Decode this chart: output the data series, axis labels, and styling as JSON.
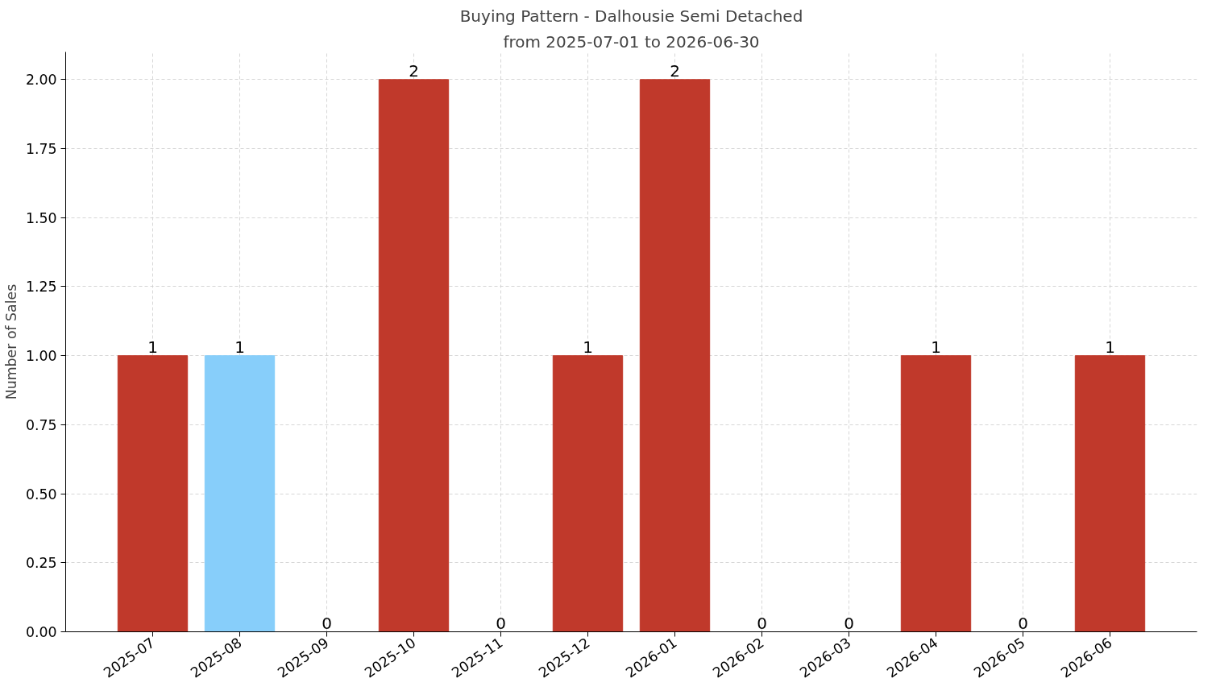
{
  "chart_data": {
    "type": "bar",
    "title": "Buying Pattern - Dalhousie Semi Detached",
    "subtitle": "from 2025-07-01 to 2026-06-30",
    "ylabel": "Number of Sales",
    "categories": [
      "2025-07",
      "2025-08",
      "2025-09",
      "2025-10",
      "2025-11",
      "2025-12",
      "2026-01",
      "2026-02",
      "2026-03",
      "2026-04",
      "2026-05",
      "2026-06"
    ],
    "values": [
      1,
      1,
      0,
      2,
      0,
      1,
      2,
      0,
      0,
      1,
      0,
      1
    ],
    "colors": [
      "#c0392b",
      "#87cefa",
      "#c0392b",
      "#c0392b",
      "#c0392b",
      "#c0392b",
      "#c0392b",
      "#c0392b",
      "#c0392b",
      "#c0392b",
      "#c0392b",
      "#c0392b"
    ],
    "ylim": [
      0,
      2.1
    ],
    "yticks": [
      {
        "value": 0,
        "label": "0.00"
      },
      {
        "value": 0.25,
        "label": "0.25"
      },
      {
        "value": 0.5,
        "label": "0.50"
      },
      {
        "value": 0.75,
        "label": "0.75"
      },
      {
        "value": 1,
        "label": "1.00"
      },
      {
        "value": 1.25,
        "label": "1.25"
      },
      {
        "value": 1.5,
        "label": "1.50"
      },
      {
        "value": 1.75,
        "label": "1.75"
      },
      {
        "value": 2,
        "label": "2.00"
      }
    ],
    "grid": true,
    "data_labels": true
  }
}
